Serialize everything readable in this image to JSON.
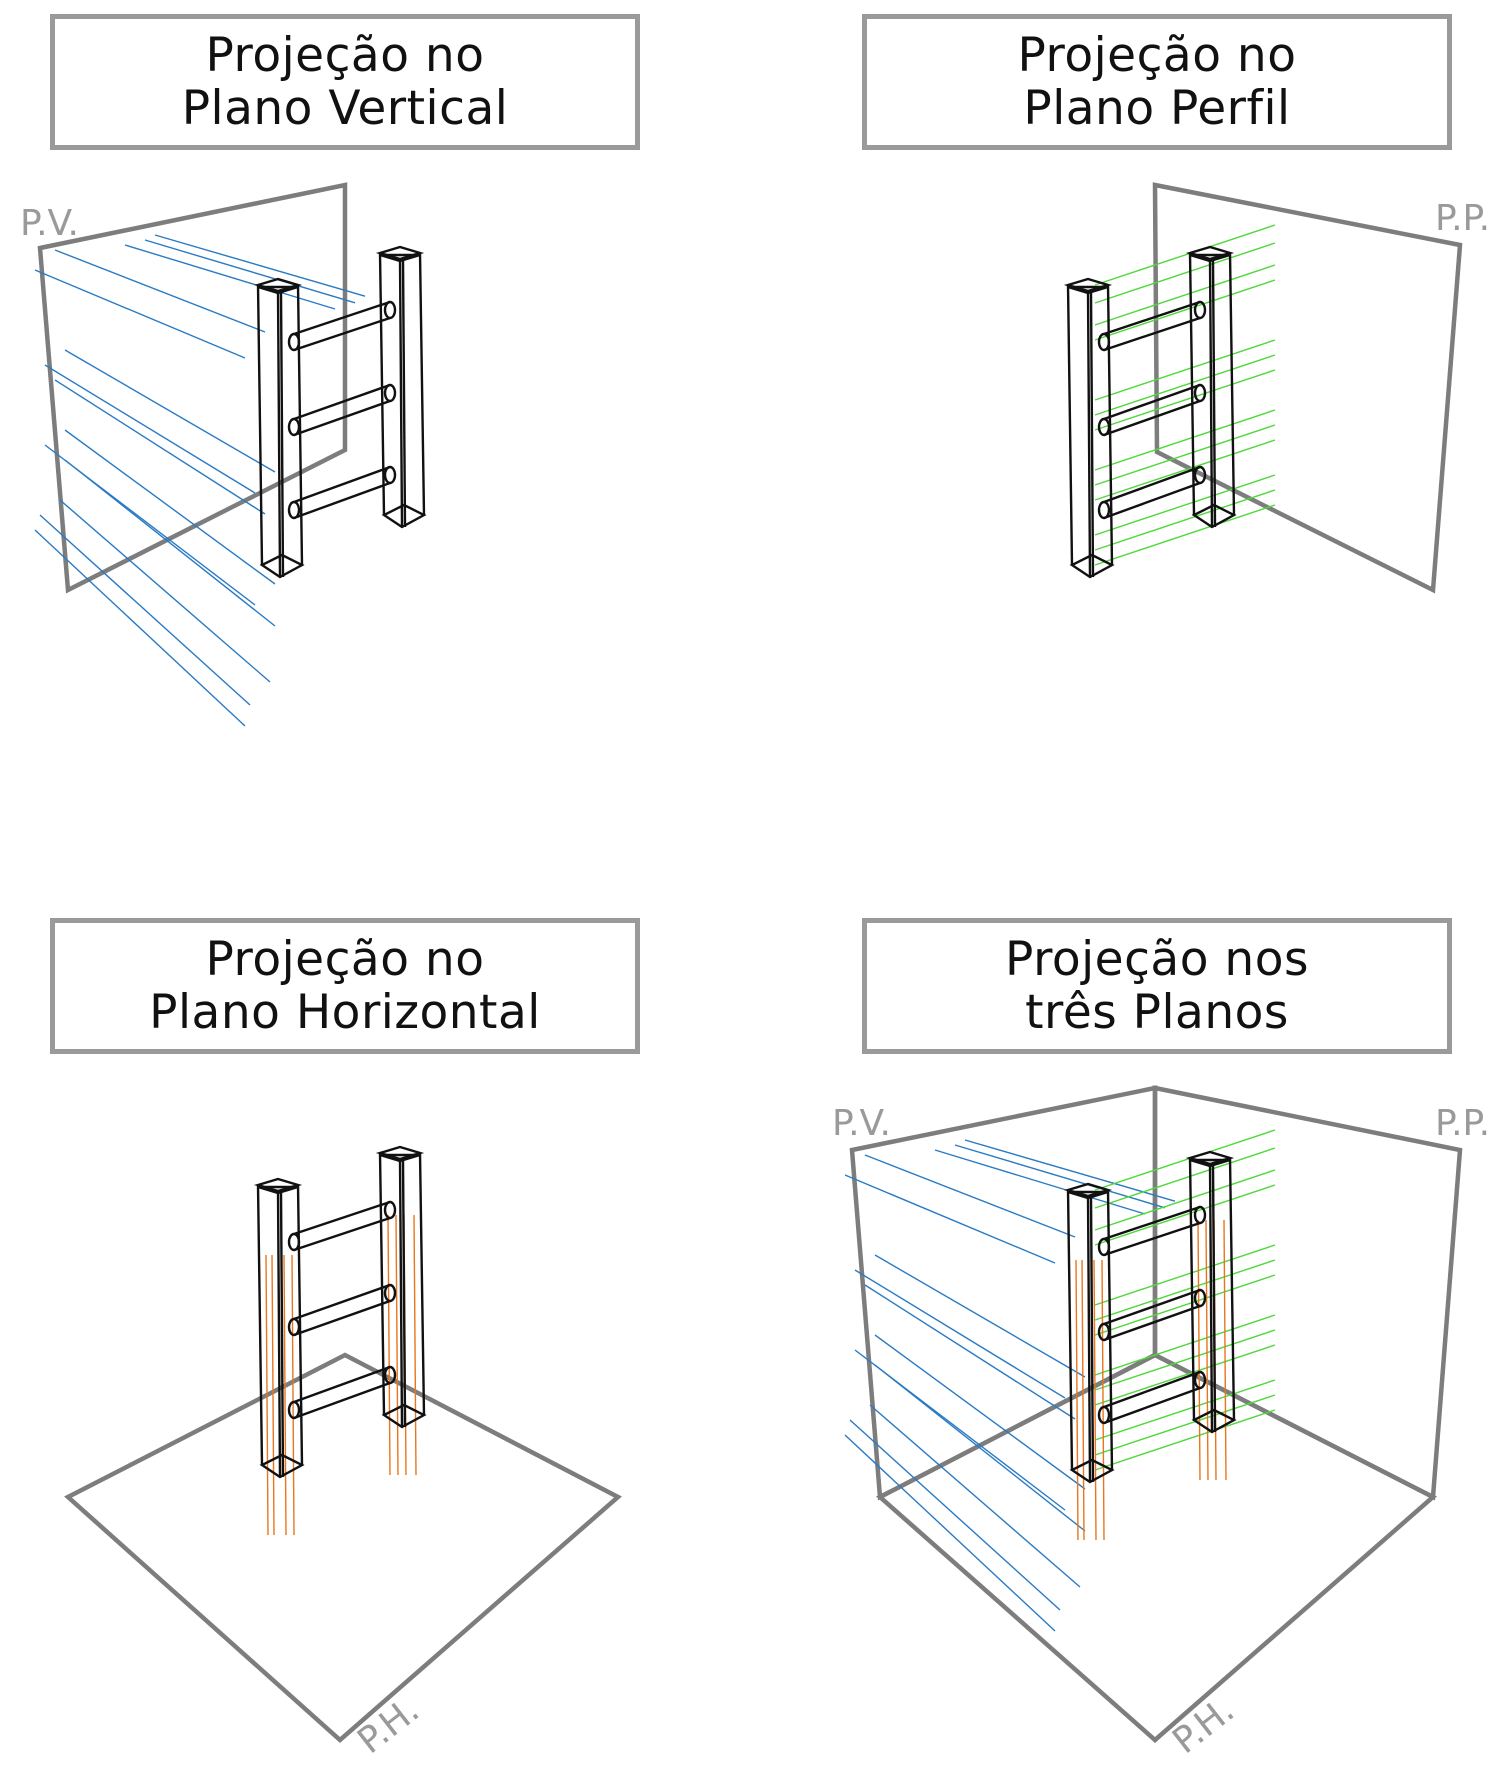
{
  "panels": [
    {
      "id": "vertical",
      "title_line1": "Projeção no",
      "title_line2": "Plano Vertical",
      "plane_labels": [
        "P.V."
      ]
    },
    {
      "id": "perfil",
      "title_line1": "Projeção no",
      "title_line2": "Plano Perfil",
      "plane_labels": [
        "P.P."
      ]
    },
    {
      "id": "horizontal",
      "title_line1": "Projeção no",
      "title_line2": "Plano Horizontal",
      "plane_labels": [
        "P.H."
      ]
    },
    {
      "id": "tres",
      "title_line1": "Projeção nos",
      "title_line2": "três Planos",
      "plane_labels": [
        "P.V.",
        "P.P.",
        "P.H."
      ]
    }
  ],
  "colors": {
    "plane": "#7d7d7d",
    "plane_label": "#9a9a9a",
    "ladder": "#111111",
    "projection_vertical": "#2a7bc4",
    "projection_perfil": "#4fd83a",
    "projection_horizontal": "#e8761f"
  }
}
